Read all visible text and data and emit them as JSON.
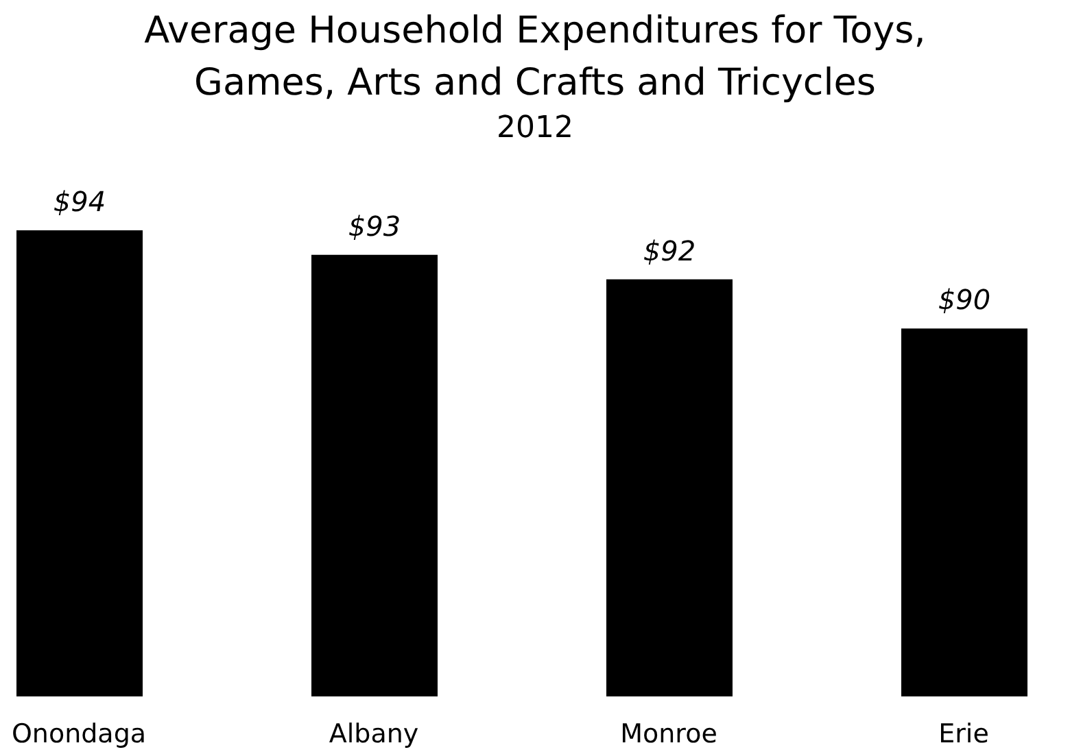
{
  "chart_data": {
    "type": "bar",
    "title": "Average Household Expenditures for Toys, Games, Arts and Crafts and Tricycles",
    "subtitle": "2012",
    "categories": [
      "Onondaga",
      "Albany",
      "Monroe",
      "Erie"
    ],
    "values": [
      94,
      93,
      92,
      90
    ],
    "color": "#000000",
    "value_labels": [
      "$94",
      "$93",
      "$92",
      "$90"
    ],
    "ylim": [
      75,
      94
    ],
    "tick_labels": "x",
    "grid": false
  }
}
